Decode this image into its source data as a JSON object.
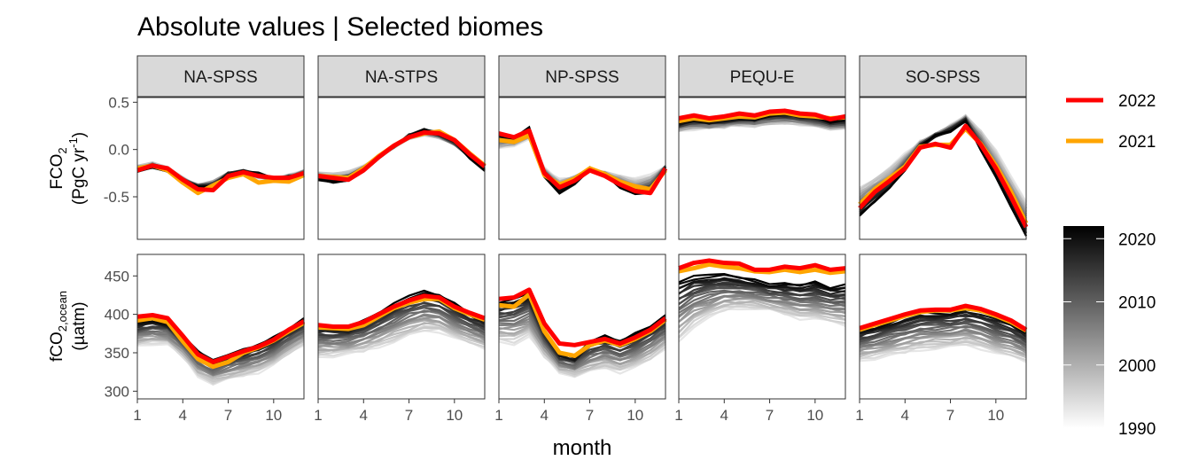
{
  "chart_data": {
    "type": "line",
    "title": "Absolute values | Selected biomes",
    "xlabel": "month",
    "x": [
      1,
      2,
      3,
      4,
      5,
      6,
      7,
      8,
      9,
      10,
      11,
      12
    ],
    "x_ticks": [
      "1",
      "4",
      "7",
      "10"
    ],
    "panels": [
      "NA-SPSS",
      "NA-STPS",
      "NP-SPSS",
      "PEQU-E",
      "SO-SPSS"
    ],
    "rows": [
      {
        "ylabel_main": "FCO",
        "ylabel_sub": "2",
        "ylabel_units": "(PgC yr",
        "ylabel_units_sup": "-1",
        "ylabel_units_end": ")",
        "yticks": [
          "0.5",
          "0.0",
          "-0.5"
        ],
        "ytick_values": [
          0.5,
          0.0,
          -0.5
        ],
        "ylim": [
          -0.95,
          0.55
        ]
      },
      {
        "ylabel_main": "fCO",
        "ylabel_sub": "2,ocean",
        "ylabel_units": "(µatm)",
        "yticks": [
          "450",
          "400",
          "350",
          "300"
        ],
        "ytick_values": [
          450,
          400,
          350,
          300
        ],
        "ylim": [
          290,
          478
        ]
      }
    ],
    "legend": {
      "entries": [
        {
          "label": "2022",
          "color": "#ff0000"
        },
        {
          "label": "2021",
          "color": "#ffa500"
        }
      ],
      "colorbar": {
        "labels": [
          "2020",
          "2010",
          "2000",
          "1990"
        ],
        "values": [
          2020,
          2010,
          2000,
          1990
        ],
        "range": [
          1990,
          2022
        ],
        "color_low": "#ffffff",
        "color_high": "#000000"
      }
    },
    "background_years": [
      1990,
      2020
    ],
    "series": {
      "fco2_flux": {
        "NA-SPSS": {
          "2022": [
            -0.22,
            -0.17,
            -0.2,
            -0.32,
            -0.42,
            -0.43,
            -0.28,
            -0.24,
            -0.28,
            -0.3,
            -0.3,
            -0.25
          ],
          "2021": [
            -0.2,
            -0.17,
            -0.22,
            -0.35,
            -0.46,
            -0.38,
            -0.3,
            -0.26,
            -0.35,
            -0.33,
            -0.34,
            -0.27
          ],
          "old": [
            -0.18,
            -0.15,
            -0.2,
            -0.3,
            -0.38,
            -0.34,
            -0.26,
            -0.25,
            -0.29,
            -0.3,
            -0.28,
            -0.22
          ],
          "new": [
            -0.23,
            -0.18,
            -0.22,
            -0.34,
            -0.4,
            -0.38,
            -0.26,
            -0.23,
            -0.26,
            -0.31,
            -0.3,
            -0.27
          ]
        },
        "NA-STPS": {
          "2022": [
            -0.28,
            -0.3,
            -0.32,
            -0.22,
            -0.08,
            0.04,
            0.13,
            0.18,
            0.17,
            0.1,
            -0.05,
            -0.18
          ],
          "2021": [
            -0.28,
            -0.29,
            -0.3,
            -0.2,
            -0.07,
            0.04,
            0.13,
            0.17,
            0.19,
            0.1,
            -0.04,
            -0.17
          ],
          "old": [
            -0.25,
            -0.26,
            -0.24,
            -0.18,
            -0.07,
            0.03,
            0.12,
            0.16,
            0.13,
            0.06,
            -0.05,
            -0.15
          ],
          "new": [
            -0.32,
            -0.34,
            -0.32,
            -0.22,
            -0.08,
            0.04,
            0.15,
            0.21,
            0.17,
            0.08,
            -0.08,
            -0.22
          ]
        },
        "NP-SPSS": {
          "2022": [
            0.17,
            0.13,
            0.2,
            -0.25,
            -0.4,
            -0.33,
            -0.22,
            -0.28,
            -0.37,
            -0.44,
            -0.46,
            -0.2
          ],
          "2021": [
            0.1,
            0.08,
            0.15,
            -0.27,
            -0.37,
            -0.31,
            -0.2,
            -0.26,
            -0.34,
            -0.39,
            -0.42,
            -0.22
          ],
          "old": [
            0.02,
            0.05,
            0.1,
            -0.2,
            -0.32,
            -0.28,
            -0.22,
            -0.25,
            -0.28,
            -0.3,
            -0.28,
            -0.18
          ],
          "new": [
            0.15,
            0.12,
            0.24,
            -0.28,
            -0.46,
            -0.36,
            -0.2,
            -0.27,
            -0.4,
            -0.48,
            -0.45,
            -0.2
          ]
        },
        "PEQU-E": {
          "2022": [
            0.33,
            0.36,
            0.33,
            0.35,
            0.38,
            0.36,
            0.4,
            0.41,
            0.38,
            0.37,
            0.32,
            0.35
          ],
          "2021": [
            0.3,
            0.33,
            0.31,
            0.33,
            0.35,
            0.34,
            0.38,
            0.39,
            0.36,
            0.35,
            0.33,
            0.34
          ],
          "old": [
            0.2,
            0.22,
            0.22,
            0.24,
            0.26,
            0.25,
            0.27,
            0.28,
            0.27,
            0.25,
            0.22,
            0.22
          ],
          "new": [
            0.28,
            0.32,
            0.3,
            0.32,
            0.34,
            0.33,
            0.37,
            0.38,
            0.36,
            0.34,
            0.3,
            0.32
          ]
        },
        "SO-SPSS": {
          "2022": [
            -0.62,
            -0.45,
            -0.33,
            -0.2,
            0.02,
            0.06,
            0.02,
            0.25,
            0.05,
            -0.2,
            -0.5,
            -0.82
          ],
          "2021": [
            -0.58,
            -0.42,
            -0.3,
            -0.18,
            0.03,
            0.05,
            0.05,
            0.22,
            0.06,
            -0.17,
            -0.45,
            -0.78
          ],
          "old": [
            -0.4,
            -0.3,
            -0.2,
            -0.05,
            0.08,
            0.15,
            0.25,
            0.35,
            0.2,
            0.0,
            -0.3,
            -0.55
          ],
          "new": [
            -0.7,
            -0.55,
            -0.4,
            -0.22,
            0.03,
            0.15,
            0.2,
            0.3,
            0.0,
            -0.3,
            -0.6,
            -0.92
          ]
        }
      },
      "fco2_ocean": {
        "NA-SPSS": {
          "2022": [
            397,
            399,
            395,
            372,
            348,
            338,
            345,
            352,
            358,
            367,
            380,
            391
          ],
          "2021": [
            392,
            395,
            390,
            365,
            342,
            332,
            338,
            350,
            357,
            366,
            378,
            389
          ],
          "old": [
            360,
            362,
            360,
            345,
            320,
            310,
            315,
            320,
            325,
            335,
            348,
            360
          ],
          "new": [
            390,
            394,
            390,
            372,
            352,
            340,
            348,
            354,
            360,
            370,
            382,
            394
          ]
        },
        "NA-STPS": {
          "2022": [
            386,
            384,
            384,
            390,
            400,
            410,
            418,
            424,
            422,
            410,
            402,
            395
          ],
          "2021": [
            383,
            382,
            381,
            386,
            397,
            408,
            415,
            420,
            420,
            408,
            400,
            393
          ],
          "old": [
            345,
            346,
            348,
            352,
            358,
            365,
            372,
            378,
            378,
            370,
            362,
            355
          ],
          "new": [
            386,
            384,
            384,
            392,
            402,
            414,
            425,
            430,
            425,
            414,
            402,
            394
          ]
        },
        "NP-SPSS": {
          "2022": [
            420,
            422,
            432,
            388,
            362,
            360,
            364,
            368,
            362,
            370,
            380,
            395
          ],
          "2021": [
            412,
            410,
            426,
            378,
            350,
            346,
            360,
            366,
            360,
            368,
            378,
            393
          ],
          "old": [
            365,
            362,
            370,
            345,
            325,
            320,
            325,
            330,
            325,
            332,
            340,
            355
          ],
          "new": [
            415,
            420,
            428,
            380,
            350,
            345,
            365,
            372,
            365,
            375,
            385,
            398
          ]
        },
        "PEQU-E": {
          "2022": [
            460,
            467,
            470,
            467,
            466,
            458,
            458,
            462,
            460,
            464,
            458,
            460
          ],
          "2021": [
            456,
            460,
            465,
            462,
            460,
            456,
            455,
            458,
            455,
            458,
            454,
            456
          ],
          "old": [
            365,
            385,
            395,
            405,
            408,
            408,
            405,
            400,
            395,
            395,
            390,
            385
          ],
          "new": [
            442,
            450,
            452,
            452,
            448,
            445,
            440,
            440,
            438,
            442,
            435,
            438
          ]
        },
        "SO-SPSS": {
          "2022": [
            382,
            388,
            394,
            400,
            405,
            406,
            406,
            411,
            407,
            400,
            392,
            380
          ],
          "2021": [
            380,
            386,
            392,
            398,
            403,
            405,
            405,
            408,
            405,
            398,
            390,
            379
          ],
          "old": [
            340,
            343,
            346,
            350,
            354,
            356,
            357,
            360,
            356,
            350,
            345,
            338
          ],
          "new": [
            380,
            385,
            392,
            398,
            404,
            404,
            404,
            408,
            404,
            398,
            390,
            378
          ]
        }
      }
    }
  }
}
